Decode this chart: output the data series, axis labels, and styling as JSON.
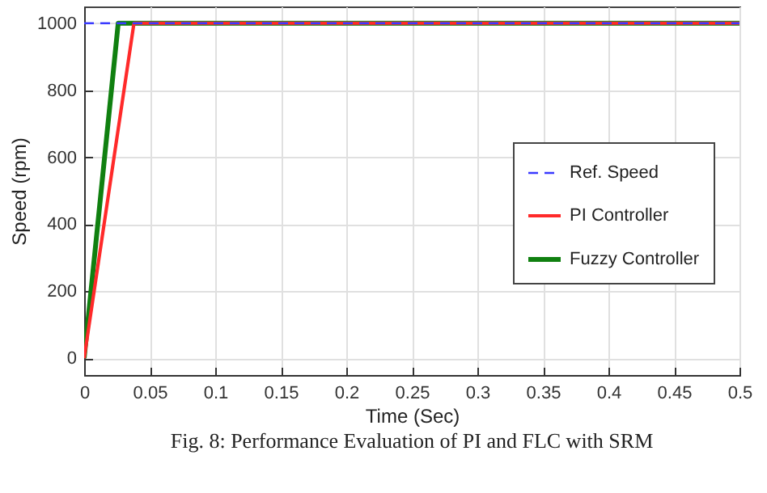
{
  "chart_data": {
    "type": "line",
    "xlabel": "Time (Sec)",
    "ylabel": "Speed (rpm)",
    "annotations": [
      "Fig. 8: Performance Evaluation of PI and FLC with SRM"
    ],
    "series": [
      {
        "name": "Ref. Speed",
        "color": "#3a3aff",
        "line_style": "dashed",
        "x": [
          0,
          0.5
        ],
        "values": [
          1000,
          1000
        ]
      },
      {
        "name": "PI Controller",
        "color": "#ff2a2a",
        "line_style": "solid",
        "x": [
          0,
          0.038,
          0.5
        ],
        "values": [
          0,
          1000,
          1000
        ]
      },
      {
        "name": "Fuzzy Controller",
        "color": "#108010",
        "line_style": "solid",
        "x": [
          0,
          0.026,
          0.5
        ],
        "values": [
          0,
          1000,
          1000
        ]
      }
    ],
    "xlim": [
      0,
      0.5
    ],
    "xticks": [
      0,
      0.05,
      0.1,
      0.15,
      0.2,
      0.25,
      0.3,
      0.35,
      0.4,
      0.45,
      0.5
    ],
    "ylim": [
      -50,
      1050
    ],
    "yticks": [
      0,
      200,
      400,
      600,
      800,
      1000
    ],
    "grid": true,
    "legend": "right",
    "marker": "none"
  }
}
